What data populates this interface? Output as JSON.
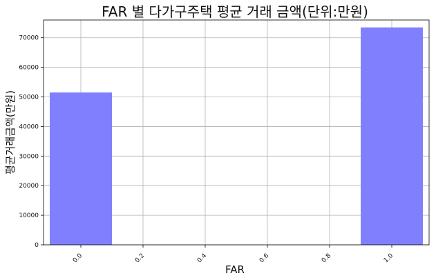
{
  "chart_data": {
    "type": "bar",
    "title": "FAR 별 다가구주택 평균 거래 금액(단위:만원)",
    "xlabel": "FAR",
    "ylabel": "평균거래금액(만원)",
    "series": [
      {
        "name": "",
        "points": [
          {
            "x": 0.0,
            "y": 51500
          },
          {
            "x": 1.0,
            "y": 73500
          }
        ],
        "color": "#8080ff"
      }
    ],
    "bar_width": 0.2,
    "xlim": [
      -0.12,
      1.12
    ],
    "ylim": [
      0,
      76000
    ],
    "x_ticks": [
      0.0,
      0.2,
      0.4,
      0.6,
      0.8,
      1.0
    ],
    "x_tick_labels": [
      "0.0",
      "0.2",
      "0.4",
      "0.6",
      "0.8",
      "1.0"
    ],
    "y_ticks": [
      0,
      10000,
      20000,
      30000,
      40000,
      50000,
      60000,
      70000
    ],
    "y_tick_labels": [
      "0",
      "10000",
      "20000",
      "30000",
      "40000",
      "50000",
      "60000",
      "70000"
    ],
    "grid": true,
    "x_tick_rotation": 45
  }
}
